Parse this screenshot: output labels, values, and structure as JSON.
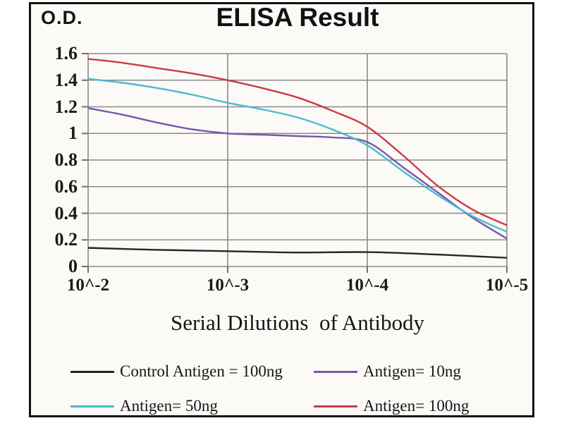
{
  "figure": {
    "ylabel": "O.D.",
    "title": "ELISA Result",
    "xlabel": "Serial Dilutions  of Antibody"
  },
  "chart_data": {
    "type": "line",
    "title": "ELISA Result",
    "ylabel": "O.D.",
    "xlabel": "Serial Dilutions  of Antibody",
    "x_ticks": [
      "10^-2",
      "10^-3",
      "10^-4",
      "10^-5"
    ],
    "y_ticks": [
      "1.6",
      "1.4",
      "1.2",
      "1",
      "0.8",
      "0.6",
      "0.4",
      "0.2",
      "0"
    ],
    "ylim": [
      0,
      1.6
    ],
    "grid": true,
    "grid_color": "#8a8a8a",
    "axis_color": "#707070",
    "legend_position": "bottom",
    "series": [
      {
        "name": "Control Antigen = 100ng",
        "color": "#262626",
        "points": [
          [
            0,
            0.14
          ],
          [
            0.5,
            0.125
          ],
          [
            1,
            0.115
          ],
          [
            1.5,
            0.105
          ],
          [
            2,
            0.108
          ],
          [
            2.5,
            0.09
          ],
          [
            3,
            0.065
          ]
        ]
      },
      {
        "name": "Antigen= 10ng",
        "color": "#7757a8",
        "points": [
          [
            0,
            1.19
          ],
          [
            0.25,
            1.14
          ],
          [
            0.5,
            1.08
          ],
          [
            0.75,
            1.03
          ],
          [
            1,
            1.0
          ],
          [
            1.25,
            0.99
          ],
          [
            1.5,
            0.98
          ],
          [
            1.75,
            0.97
          ],
          [
            2,
            0.935
          ],
          [
            2.25,
            0.75
          ],
          [
            2.5,
            0.56
          ],
          [
            2.75,
            0.37
          ],
          [
            3,
            0.21
          ]
        ]
      },
      {
        "name": "Antigen= 50ng",
        "color": "#4db9cf",
        "points": [
          [
            0,
            1.41
          ],
          [
            0.25,
            1.38
          ],
          [
            0.5,
            1.34
          ],
          [
            0.75,
            1.29
          ],
          [
            1,
            1.23
          ],
          [
            1.25,
            1.18
          ],
          [
            1.5,
            1.12
          ],
          [
            1.75,
            1.03
          ],
          [
            2,
            0.91
          ],
          [
            2.25,
            0.72
          ],
          [
            2.5,
            0.54
          ],
          [
            2.75,
            0.38
          ],
          [
            3,
            0.26
          ]
        ]
      },
      {
        "name": "Antigen= 100ng",
        "color": "#cd3a44",
        "points": [
          [
            0,
            1.56
          ],
          [
            0.25,
            1.53
          ],
          [
            0.5,
            1.49
          ],
          [
            0.75,
            1.45
          ],
          [
            1,
            1.4
          ],
          [
            1.25,
            1.34
          ],
          [
            1.5,
            1.27
          ],
          [
            1.75,
            1.17
          ],
          [
            2,
            1.05
          ],
          [
            2.25,
            0.84
          ],
          [
            2.5,
            0.61
          ],
          [
            2.75,
            0.43
          ],
          [
            3,
            0.31
          ]
        ]
      }
    ]
  }
}
